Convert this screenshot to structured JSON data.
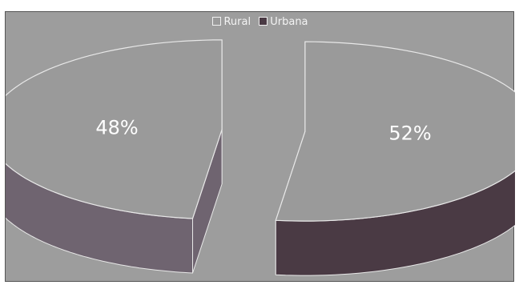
{
  "chart_data": {
    "type": "pie",
    "title": "",
    "categories": [
      "Rural",
      "Urbana"
    ],
    "values": [
      48,
      52
    ],
    "data_labels": [
      "48%",
      "52%"
    ],
    "legend": {
      "position": "top",
      "entries": [
        "Rural",
        "Urbana"
      ]
    },
    "style": "3d-exploded"
  },
  "colors": {
    "background": "#9d9d9d",
    "top_face": "#9a9a9a",
    "edge_line": "#e8e8e8",
    "side_rural": "#6f6470",
    "side_urbana": "#4a3a44",
    "text": "#ffffff"
  }
}
